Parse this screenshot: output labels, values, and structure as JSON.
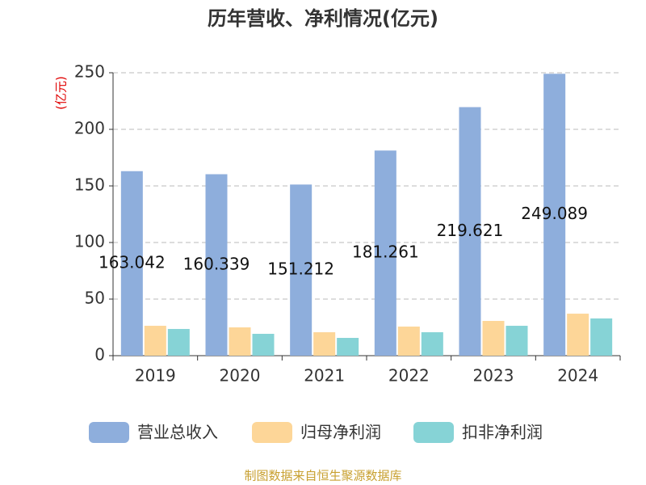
{
  "chart_data": {
    "type": "bar",
    "title": "历年营收、净利情况(亿元)",
    "y_axis_label": "(亿元)",
    "categories": [
      "2019",
      "2020",
      "2021",
      "2022",
      "2023",
      "2024"
    ],
    "series": [
      {
        "name": "营业总收入",
        "color": "#8eaedc",
        "values": [
          163.042,
          160.339,
          151.212,
          181.261,
          219.621,
          249.089
        ]
      },
      {
        "name": "归母净利润",
        "color": "#fdd698",
        "values": [
          26.4,
          25,
          20.7,
          25.7,
          30.7,
          37.1
        ]
      },
      {
        "name": "扣非净利润",
        "color": "#86d3d6",
        "values": [
          23.6,
          19.3,
          15.7,
          20.7,
          26.4,
          32.9
        ]
      }
    ],
    "ylim": [
      0,
      250
    ],
    "yticks": [
      0,
      50,
      100,
      150,
      200,
      250
    ],
    "grid": true,
    "source": "制图数据来自恒生聚源数据库"
  }
}
